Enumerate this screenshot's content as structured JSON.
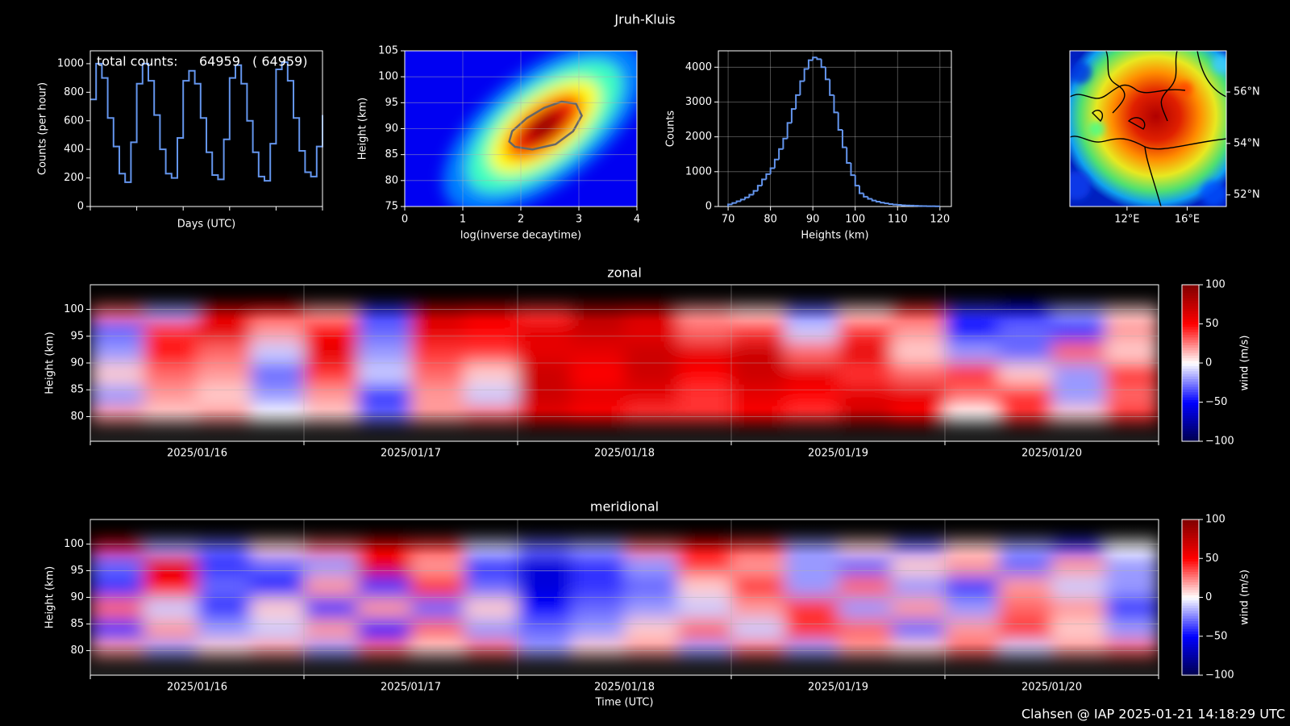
{
  "suptitle": "Jruh-Kluis",
  "footer": "Clahsen @ IAP 2025-01-21 14:18:29 UTC",
  "chart_data": [
    {
      "type": "line",
      "step": true,
      "xlabel": "Days (UTC)",
      "ylabel": "Counts (per hour)",
      "color": "#6495ed",
      "x": [
        0,
        0.125,
        0.25,
        0.375,
        0.5,
        0.625,
        0.75,
        0.875,
        1,
        1.125,
        1.25,
        1.375,
        1.5,
        1.625,
        1.75,
        1.875,
        2,
        2.125,
        2.25,
        2.375,
        2.5,
        2.625,
        2.75,
        2.875,
        3,
        3.125,
        3.25,
        3.375,
        3.5,
        3.625,
        3.75,
        3.875,
        4,
        4.125,
        4.25,
        4.375,
        4.5,
        4.625,
        4.75,
        4.875,
        5
      ],
      "values": [
        750,
        1000,
        900,
        620,
        420,
        230,
        170,
        450,
        860,
        1000,
        880,
        640,
        400,
        230,
        200,
        480,
        880,
        950,
        860,
        620,
        380,
        220,
        190,
        470,
        900,
        990,
        860,
        600,
        380,
        210,
        180,
        440,
        960,
        1010,
        880,
        620,
        390,
        240,
        210,
        420,
        640
      ],
      "xlim": [
        0,
        5
      ],
      "xticks": [
        0,
        1,
        2,
        3,
        4,
        5
      ],
      "ylim": [
        0,
        1090
      ],
      "yticks": [
        0,
        200,
        400,
        600,
        800,
        1000
      ],
      "annotations": [
        {
          "text": "total counts:",
          "color": "#ffffff"
        },
        {
          "text": "64959",
          "color": "#ffff00"
        },
        {
          "text": "( 64959)",
          "color": "#6495ed"
        }
      ]
    },
    {
      "type": "density",
      "xlabel": "log(inverse decaytime)",
      "ylabel": "Height (km)",
      "xlim": [
        0,
        4
      ],
      "xticks": [
        0,
        1,
        2,
        3,
        4
      ],
      "ylim": [
        75,
        105
      ],
      "yticks": [
        75,
        80,
        85,
        90,
        95,
        100,
        105
      ],
      "grid": true,
      "colormap": [
        "#00007f",
        "#0000ff",
        "#00ffff",
        "#ffff00",
        "#ff0000",
        "#7f0000"
      ],
      "contour": {
        "x": [
          1.9,
          2.2,
          2.6,
          2.9,
          3.05,
          2.95,
          2.7,
          2.4,
          2.1,
          1.85,
          1.8
        ],
        "y": [
          86.5,
          86.0,
          87.0,
          89.5,
          92.5,
          94.8,
          95.2,
          94.0,
          92.0,
          89.5,
          87.5
        ]
      }
    },
    {
      "type": "histogram",
      "xlabel": "Heights (km)",
      "ylabel": "Counts",
      "color": "#6495ed",
      "bins": [
        70,
        71,
        72,
        73,
        74,
        75,
        76,
        77,
        78,
        79,
        80,
        81,
        82,
        83,
        84,
        85,
        86,
        87,
        88,
        89,
        90,
        91,
        92,
        93,
        94,
        95,
        96,
        97,
        98,
        99,
        100,
        101,
        102,
        103,
        104,
        105,
        106,
        107,
        108,
        109,
        110,
        111,
        112,
        113,
        114,
        115,
        116,
        117,
        118,
        119,
        120
      ],
      "values": [
        60,
        100,
        150,
        200,
        260,
        340,
        450,
        600,
        780,
        930,
        1100,
        1350,
        1650,
        1950,
        2400,
        2800,
        3200,
        3600,
        3950,
        4200,
        4280,
        4230,
        4000,
        3650,
        3200,
        2700,
        2200,
        1700,
        1250,
        900,
        600,
        380,
        280,
        220,
        170,
        140,
        110,
        90,
        70,
        55,
        45,
        35,
        30,
        25,
        20,
        15,
        12,
        10,
        8,
        6
      ],
      "xlim": [
        67.7,
        122.7
      ],
      "xticks": [
        70,
        80,
        90,
        100,
        110,
        120
      ],
      "ylim": [
        0,
        4470
      ],
      "yticks": [
        0,
        1000,
        2000,
        3000,
        4000
      ],
      "grid": true
    },
    {
      "type": "map",
      "xlim": [
        8.2,
        18.6
      ],
      "xticks": [
        {
          "value": 12,
          "label": "12°E"
        },
        {
          "value": 16,
          "label": "16°E"
        }
      ],
      "ylim": [
        51.55,
        57.6
      ],
      "yticks": [
        {
          "value": 52,
          "label": "52°N"
        },
        {
          "value": 54,
          "label": "54°N"
        },
        {
          "value": 56,
          "label": "56°N"
        }
      ]
    },
    {
      "type": "heatmap",
      "title": "zonal",
      "ylabel": "Height (km)",
      "categories": [
        "2025/01/16",
        "2025/01/17",
        "2025/01/18",
        "2025/01/19",
        "2025/01/20"
      ],
      "heights": [
        100,
        96,
        92,
        88,
        84,
        80
      ],
      "z": [
        [
          30,
          -20,
          60,
          50,
          20,
          -40,
          70,
          60,
          40,
          80,
          70,
          20,
          10,
          -30,
          10,
          40,
          -40,
          -50,
          -20,
          10
        ],
        [
          -30,
          40,
          60,
          20,
          50,
          -30,
          60,
          50,
          60,
          70,
          60,
          30,
          40,
          -10,
          40,
          20,
          -50,
          -30,
          -40,
          20
        ],
        [
          -20,
          50,
          30,
          -10,
          60,
          -20,
          40,
          40,
          60,
          60,
          70,
          60,
          70,
          30,
          60,
          10,
          -20,
          -30,
          30,
          10
        ],
        [
          10,
          30,
          20,
          -30,
          40,
          -10,
          30,
          10,
          70,
          50,
          70,
          50,
          70,
          60,
          40,
          30,
          40,
          10,
          -20,
          40
        ],
        [
          -20,
          20,
          10,
          -20,
          20,
          -40,
          20,
          -10,
          70,
          60,
          60,
          40,
          60,
          50,
          60,
          60,
          30,
          40,
          -20,
          30
        ],
        [
          20,
          10,
          20,
          0,
          10,
          -30,
          20,
          30,
          60,
          50,
          40,
          40,
          50,
          40,
          70,
          50,
          0,
          40,
          10,
          40
        ]
      ],
      "ylim": [
        75.4,
        104.6
      ],
      "yticks": [
        80,
        85,
        90,
        95,
        100
      ],
      "grid": true,
      "colormap": [
        "#00004c",
        "#0000ff",
        "#ffffff",
        "#ff0000",
        "#800000"
      ],
      "clim": [
        -100,
        100
      ],
      "cticks": [
        {
          "value": -100,
          "label": "−100"
        },
        {
          "value": -50,
          "label": "−50"
        },
        0,
        50,
        100
      ],
      "clabel": "wind (m/s)"
    },
    {
      "type": "heatmap",
      "title": "meridional",
      "ylabel": "Height (km)",
      "xlabel": "Time (UTC)",
      "categories": [
        "2025/01/16",
        "2025/01/17",
        "2025/01/18",
        "2025/01/19",
        "2025/01/20"
      ],
      "heights": [
        100,
        96,
        92,
        88,
        84,
        80
      ],
      "z": [
        [
          60,
          -20,
          -30,
          10,
          30,
          50,
          40,
          -10,
          -30,
          -20,
          30,
          50,
          40,
          -20,
          10,
          -30,
          10,
          -20,
          -40,
          0
        ],
        [
          -30,
          60,
          -40,
          -30,
          -20,
          60,
          20,
          -40,
          -60,
          -40,
          -20,
          40,
          20,
          -20,
          -30,
          10,
          20,
          -30,
          20,
          -20
        ],
        [
          -40,
          50,
          -30,
          -50,
          20,
          -40,
          40,
          -30,
          -60,
          -40,
          -30,
          10,
          40,
          -20,
          30,
          -20,
          -40,
          20,
          -10,
          -20
        ],
        [
          30,
          -10,
          -40,
          10,
          -40,
          20,
          -30,
          10,
          -50,
          -30,
          -20,
          -10,
          20,
          40,
          -20,
          20,
          -20,
          30,
          20,
          -40
        ],
        [
          -40,
          20,
          -20,
          -10,
          20,
          -50,
          30,
          -20,
          -30,
          -20,
          10,
          30,
          -10,
          40,
          30,
          -30,
          20,
          40,
          10,
          -20
        ],
        [
          20,
          -20,
          10,
          20,
          -20,
          30,
          10,
          30,
          -20,
          10,
          20,
          -20,
          30,
          -20,
          20,
          10,
          30,
          -10,
          20,
          30
        ]
      ],
      "ylim": [
        75.4,
        104.6
      ],
      "yticks": [
        80,
        85,
        90,
        95,
        100
      ],
      "grid": true,
      "colormap": [
        "#00004c",
        "#0000ff",
        "#ffffff",
        "#ff0000",
        "#800000"
      ],
      "clim": [
        -100,
        100
      ],
      "cticks": [
        {
          "value": -100,
          "label": "−100"
        },
        {
          "value": -50,
          "label": "−50"
        },
        0,
        50,
        100
      ],
      "clabel": "wind (m/s)"
    }
  ]
}
